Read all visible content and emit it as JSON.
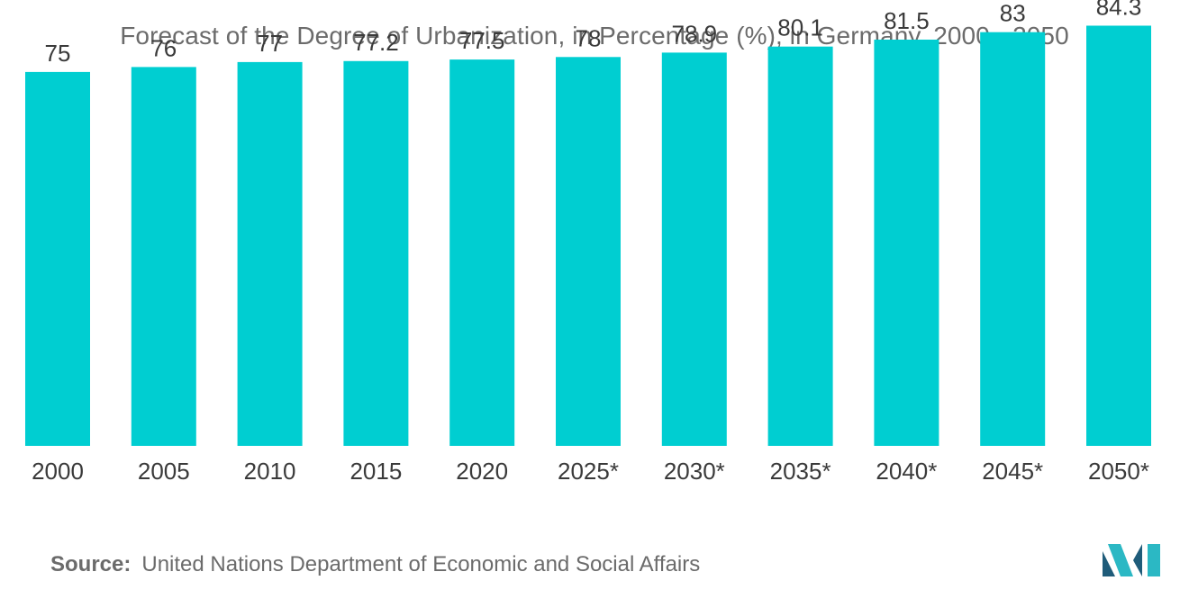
{
  "title": "Forecast of the Degree of Urbanization, in Percentage (%), in Germany, 2000 - 2050",
  "source": {
    "label": "Source:",
    "text": "United Nations Department of Economic and Social Affairs"
  },
  "colors": {
    "bar": "#00CED1",
    "text": "#3a3a3a",
    "title": "#6b6b6b",
    "logo_dark": "#1f5c7a",
    "logo_light": "#2bb8c4"
  },
  "logo": {
    "icon": "mordor-intelligence-logo-icon"
  },
  "chart_data": {
    "type": "bar",
    "title": "Forecast of the Degree of Urbanization, in Percentage (%), in Germany, 2000 - 2050",
    "xlabel": "",
    "ylabel": "",
    "categories": [
      "2000",
      "2005",
      "2010",
      "2015",
      "2020",
      "2025*",
      "2030*",
      "2035*",
      "2040*",
      "2045*",
      "2050*"
    ],
    "values": [
      75,
      76,
      77,
      77.2,
      77.5,
      78,
      78.9,
      80.1,
      81.5,
      83,
      84.3
    ],
    "value_labels": [
      "75",
      "76",
      "77",
      "77.2",
      "77.5",
      "78",
      "78.9",
      "80.1",
      "81.5",
      "83",
      "84.3"
    ],
    "ylim": [
      0,
      88
    ],
    "grid": false,
    "legend": "none"
  }
}
